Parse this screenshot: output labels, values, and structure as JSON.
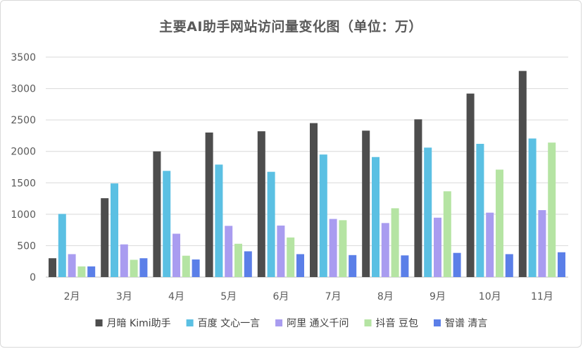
{
  "chart_data": {
    "type": "bar",
    "title": "主要AI助手网站访问量变化图（单位：万）",
    "xlabel": "",
    "ylabel": "",
    "ylim": [
      0,
      3500
    ],
    "yticks": [
      0,
      500,
      1000,
      1500,
      2000,
      2500,
      3000,
      3500
    ],
    "grid": true,
    "legend_position": "bottom",
    "categories": [
      "2月",
      "3月",
      "4月",
      "5月",
      "6月",
      "7月",
      "8月",
      "9月",
      "10月",
      "11月"
    ],
    "series": [
      {
        "name": "月暗 Kimi助手",
        "color": "#4d4d4d",
        "values": [
          300,
          1255,
          2000,
          2300,
          2320,
          2450,
          2330,
          2510,
          2920,
          3280
        ]
      },
      {
        "name": "百度 文心一言",
        "color": "#5bc0e3",
        "values": [
          1005,
          1490,
          1690,
          1790,
          1675,
          1950,
          1910,
          2060,
          2120,
          2205
        ]
      },
      {
        "name": "阿里 通义千问",
        "color": "#a99cf0",
        "values": [
          365,
          520,
          690,
          815,
          820,
          925,
          860,
          945,
          1025,
          1065
        ]
      },
      {
        "name": "抖音 豆包",
        "color": "#b5e4a3",
        "values": [
          170,
          275,
          340,
          530,
          630,
          905,
          1095,
          1365,
          1710,
          2140
        ]
      },
      {
        "name": "智谱 清言",
        "color": "#5b7fe8",
        "values": [
          170,
          300,
          280,
          410,
          365,
          350,
          345,
          385,
          365,
          395
        ]
      }
    ]
  }
}
